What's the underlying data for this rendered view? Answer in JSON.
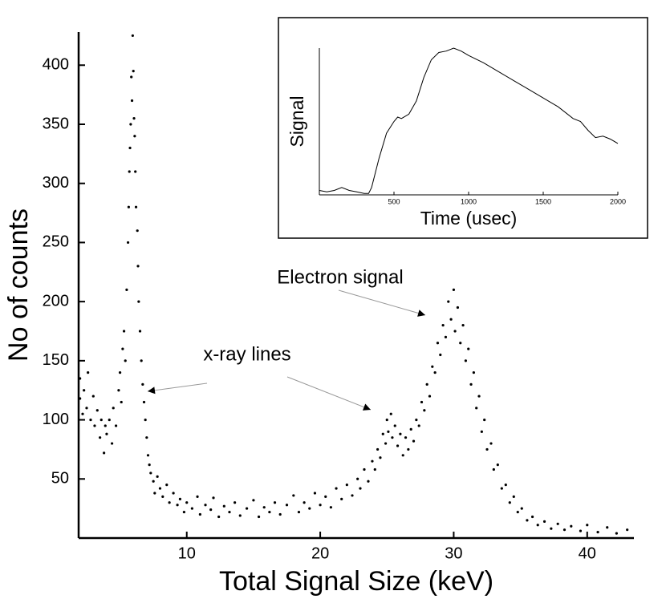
{
  "chart_data": [
    {
      "type": "scatter",
      "xlabel": "Total Signal Size (keV)",
      "ylabel": "No of counts",
      "annotations": [
        "x-ray lines",
        "Electron signal"
      ],
      "color": "#000000",
      "xlim": [
        1.9,
        43.5
      ],
      "ylim": [
        0,
        428
      ],
      "xticks": [
        10,
        20,
        30,
        40
      ],
      "yticks": [
        50,
        100,
        150,
        200,
        250,
        300,
        350,
        400
      ],
      "x": [
        2.0,
        2.0,
        2.2,
        2.3,
        2.5,
        2.6,
        2.8,
        3.0,
        3.1,
        3.3,
        3.5,
        3.6,
        3.8,
        3.9,
        4.0,
        4.2,
        4.4,
        4.5,
        4.7,
        4.9,
        5.0,
        5.1,
        5.2,
        5.3,
        5.4,
        5.5,
        5.6,
        5.65,
        5.7,
        5.75,
        5.8,
        5.85,
        5.9,
        5.95,
        6.0,
        6.05,
        6.1,
        6.15,
        6.2,
        6.3,
        6.35,
        6.4,
        6.5,
        6.6,
        6.7,
        6.8,
        6.9,
        7.0,
        7.1,
        7.2,
        7.3,
        7.5,
        7.6,
        7.8,
        8.0,
        8.2,
        8.5,
        8.7,
        9.0,
        9.3,
        9.5,
        9.8,
        10.0,
        10.4,
        10.8,
        11.0,
        11.4,
        11.8,
        12.0,
        12.4,
        12.8,
        13.2,
        13.6,
        14.0,
        14.5,
        15.0,
        15.4,
        15.8,
        16.2,
        16.6,
        17.0,
        17.5,
        18.0,
        18.4,
        18.8,
        19.2,
        19.6,
        20.0,
        20.4,
        20.8,
        21.2,
        21.6,
        22.0,
        22.4,
        22.8,
        23.0,
        23.3,
        23.6,
        23.9,
        24.1,
        24.3,
        24.5,
        24.7,
        24.9,
        25.0,
        25.1,
        25.3,
        25.4,
        25.6,
        25.8,
        26.0,
        26.2,
        26.4,
        26.6,
        26.8,
        27.0,
        27.2,
        27.4,
        27.6,
        27.8,
        28.0,
        28.2,
        28.4,
        28.6,
        28.8,
        29.0,
        29.2,
        29.4,
        29.6,
        29.8,
        30.0,
        30.1,
        30.3,
        30.5,
        30.7,
        30.9,
        31.1,
        31.3,
        31.5,
        31.7,
        31.9,
        32.1,
        32.3,
        32.5,
        32.8,
        33.0,
        33.3,
        33.6,
        33.9,
        34.2,
        34.5,
        34.8,
        35.1,
        35.5,
        35.9,
        36.3,
        36.8,
        37.3,
        37.8,
        38.3,
        38.8,
        39.5,
        40.0,
        40.8,
        41.5,
        42.2,
        43.0
      ],
      "values": [
        118,
        135,
        105,
        125,
        110,
        140,
        100,
        120,
        95,
        108,
        85,
        100,
        72,
        95,
        88,
        100,
        80,
        110,
        95,
        125,
        140,
        115,
        160,
        175,
        150,
        210,
        250,
        280,
        310,
        330,
        350,
        390,
        370,
        425,
        395,
        355,
        340,
        310,
        280,
        260,
        230,
        200,
        175,
        150,
        130,
        115,
        100,
        85,
        70,
        62,
        55,
        48,
        38,
        52,
        42,
        35,
        45,
        30,
        38,
        28,
        33,
        22,
        30,
        25,
        35,
        20,
        28,
        24,
        34,
        18,
        27,
        22,
        30,
        19,
        25,
        32,
        18,
        26,
        22,
        30,
        20,
        28,
        36,
        22,
        30,
        25,
        38,
        28,
        35,
        26,
        42,
        33,
        45,
        36,
        50,
        42,
        58,
        48,
        65,
        58,
        75,
        68,
        88,
        80,
        100,
        90,
        105,
        85,
        95,
        78,
        88,
        70,
        85,
        75,
        92,
        82,
        100,
        95,
        115,
        108,
        130,
        120,
        145,
        140,
        165,
        155,
        180,
        170,
        200,
        185,
        210,
        175,
        195,
        165,
        180,
        150,
        160,
        130,
        140,
        110,
        120,
        90,
        100,
        75,
        80,
        58,
        62,
        42,
        45,
        30,
        35,
        22,
        25,
        15,
        18,
        11,
        14,
        8,
        12,
        7,
        10,
        6,
        11,
        5,
        9,
        4,
        7
      ]
    },
    {
      "type": "line",
      "xlabel": "Time (usec)",
      "ylabel": "Signal",
      "color": "#000000",
      "xlim": [
        0,
        2000
      ],
      "ylim": [
        0,
        1
      ],
      "xticks": [
        500,
        1000,
        1500,
        2000
      ],
      "x": [
        0,
        50,
        100,
        150,
        200,
        250,
        300,
        330,
        350,
        400,
        450,
        500,
        525,
        550,
        600,
        650,
        700,
        750,
        800,
        850,
        900,
        950,
        1000,
        1100,
        1200,
        1300,
        1400,
        1500,
        1600,
        1700,
        1750,
        1800,
        1850,
        1900,
        1950,
        2000
      ],
      "values": [
        0.03,
        0.02,
        0.03,
        0.05,
        0.03,
        0.02,
        0.01,
        0.01,
        0.05,
        0.25,
        0.42,
        0.5,
        0.53,
        0.52,
        0.55,
        0.64,
        0.8,
        0.92,
        0.97,
        0.98,
        1.0,
        0.98,
        0.95,
        0.9,
        0.84,
        0.78,
        0.72,
        0.66,
        0.6,
        0.52,
        0.5,
        0.44,
        0.39,
        0.4,
        0.38,
        0.35
      ]
    }
  ]
}
